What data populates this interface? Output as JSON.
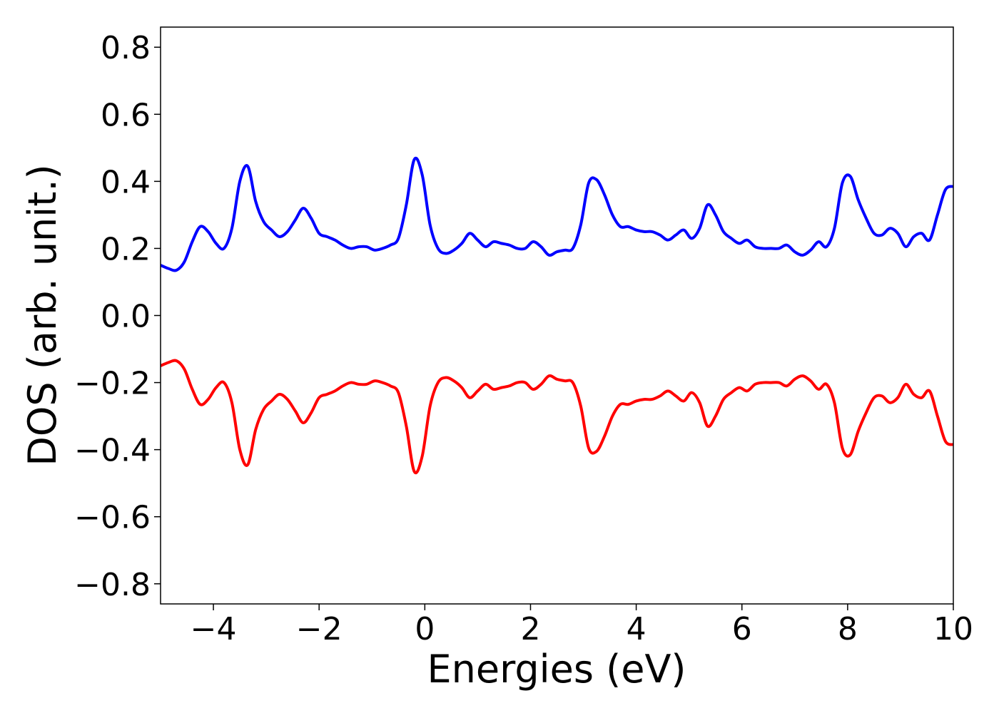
{
  "chart_data": {
    "type": "line",
    "title": "",
    "xlabel": "Energies (eV)",
    "ylabel": "DOS (arb. unit.)",
    "xlim": [
      -5,
      10
    ],
    "ylim": [
      -0.86,
      0.86
    ],
    "xticks": [
      -4,
      -2,
      0,
      2,
      4,
      6,
      8,
      10
    ],
    "xtick_labels": [
      "−4",
      "−2",
      "0",
      "2",
      "4",
      "6",
      "8",
      "10"
    ],
    "yticks": [
      0.8,
      0.6,
      0.4,
      0.2,
      0.0,
      -0.2,
      -0.4,
      -0.6,
      -0.8
    ],
    "ytick_labels": [
      "0.8",
      "0.6",
      "0.4",
      "0.2",
      "0.0",
      "−0.2",
      "−0.4",
      "−0.6",
      "−0.8"
    ],
    "grid": false,
    "legend": "none",
    "series": [
      {
        "color": "#0000ff",
        "x": [
          -5.0,
          -4.85,
          -4.7,
          -4.55,
          -4.4,
          -4.25,
          -4.1,
          -3.95,
          -3.8,
          -3.65,
          -3.5,
          -3.35,
          -3.2,
          -3.05,
          -2.9,
          -2.75,
          -2.6,
          -2.45,
          -2.3,
          -2.15,
          -2.0,
          -1.85,
          -1.7,
          -1.55,
          -1.4,
          -1.25,
          -1.1,
          -0.95,
          -0.8,
          -0.65,
          -0.5,
          -0.35,
          -0.2,
          -0.05,
          0.1,
          0.25,
          0.4,
          0.55,
          0.7,
          0.85,
          1.0,
          1.15,
          1.3,
          1.45,
          1.6,
          1.75,
          1.9,
          2.05,
          2.2,
          2.35,
          2.5,
          2.65,
          2.8,
          2.95,
          3.1,
          3.25,
          3.4,
          3.55,
          3.7,
          3.85,
          4.0,
          4.15,
          4.3,
          4.45,
          4.6,
          4.75,
          4.9,
          5.05,
          5.2,
          5.35,
          5.5,
          5.65,
          5.8,
          5.95,
          6.1,
          6.25,
          6.4,
          6.55,
          6.7,
          6.85,
          7.0,
          7.15,
          7.3,
          7.45,
          7.6,
          7.75,
          7.9,
          8.05,
          8.2,
          8.35,
          8.5,
          8.65,
          8.8,
          8.95,
          9.1,
          9.25,
          9.4,
          9.55,
          9.7,
          9.85,
          10.0
        ],
        "y": [
          0.15,
          0.14,
          0.135,
          0.16,
          0.22,
          0.265,
          0.25,
          0.215,
          0.2,
          0.26,
          0.4,
          0.445,
          0.34,
          0.28,
          0.255,
          0.235,
          0.25,
          0.285,
          0.32,
          0.29,
          0.245,
          0.235,
          0.225,
          0.21,
          0.2,
          0.205,
          0.205,
          0.195,
          0.2,
          0.21,
          0.23,
          0.33,
          0.465,
          0.42,
          0.27,
          0.2,
          0.185,
          0.195,
          0.215,
          0.245,
          0.225,
          0.205,
          0.22,
          0.215,
          0.21,
          0.2,
          0.2,
          0.22,
          0.205,
          0.18,
          0.19,
          0.195,
          0.2,
          0.27,
          0.395,
          0.405,
          0.36,
          0.3,
          0.265,
          0.265,
          0.255,
          0.25,
          0.25,
          0.24,
          0.225,
          0.24,
          0.255,
          0.23,
          0.26,
          0.33,
          0.3,
          0.25,
          0.23,
          0.215,
          0.225,
          0.205,
          0.2,
          0.2,
          0.2,
          0.21,
          0.19,
          0.18,
          0.195,
          0.22,
          0.205,
          0.26,
          0.395,
          0.415,
          0.345,
          0.29,
          0.245,
          0.24,
          0.26,
          0.245,
          0.205,
          0.235,
          0.245,
          0.225,
          0.3,
          0.375,
          0.385
        ]
      },
      {
        "color": "#ff0000",
        "x": [
          -5.0,
          -4.85,
          -4.7,
          -4.55,
          -4.4,
          -4.25,
          -4.1,
          -3.95,
          -3.8,
          -3.65,
          -3.5,
          -3.35,
          -3.2,
          -3.05,
          -2.9,
          -2.75,
          -2.6,
          -2.45,
          -2.3,
          -2.15,
          -2.0,
          -1.85,
          -1.7,
          -1.55,
          -1.4,
          -1.25,
          -1.1,
          -0.95,
          -0.8,
          -0.65,
          -0.5,
          -0.35,
          -0.2,
          -0.05,
          0.1,
          0.25,
          0.4,
          0.55,
          0.7,
          0.85,
          1.0,
          1.15,
          1.3,
          1.45,
          1.6,
          1.75,
          1.9,
          2.05,
          2.2,
          2.35,
          2.5,
          2.65,
          2.8,
          2.95,
          3.1,
          3.25,
          3.4,
          3.55,
          3.7,
          3.85,
          4.0,
          4.15,
          4.3,
          4.45,
          4.6,
          4.75,
          4.9,
          5.05,
          5.2,
          5.35,
          5.5,
          5.65,
          5.8,
          5.95,
          6.1,
          6.25,
          6.4,
          6.55,
          6.7,
          6.85,
          7.0,
          7.15,
          7.3,
          7.45,
          7.6,
          7.75,
          7.9,
          8.05,
          8.2,
          8.35,
          8.5,
          8.65,
          8.8,
          8.95,
          9.1,
          9.25,
          9.4,
          9.55,
          9.7,
          9.85,
          10.0
        ],
        "y": [
          -0.15,
          -0.14,
          -0.135,
          -0.16,
          -0.22,
          -0.265,
          -0.25,
          -0.215,
          -0.2,
          -0.26,
          -0.4,
          -0.445,
          -0.34,
          -0.28,
          -0.255,
          -0.235,
          -0.25,
          -0.285,
          -0.32,
          -0.29,
          -0.245,
          -0.235,
          -0.225,
          -0.21,
          -0.2,
          -0.205,
          -0.205,
          -0.195,
          -0.2,
          -0.21,
          -0.23,
          -0.33,
          -0.465,
          -0.42,
          -0.27,
          -0.2,
          -0.185,
          -0.195,
          -0.215,
          -0.245,
          -0.225,
          -0.205,
          -0.22,
          -0.215,
          -0.21,
          -0.2,
          -0.2,
          -0.22,
          -0.205,
          -0.18,
          -0.19,
          -0.195,
          -0.2,
          -0.27,
          -0.395,
          -0.405,
          -0.36,
          -0.3,
          -0.265,
          -0.265,
          -0.255,
          -0.25,
          -0.25,
          -0.24,
          -0.225,
          -0.24,
          -0.255,
          -0.23,
          -0.26,
          -0.33,
          -0.3,
          -0.25,
          -0.23,
          -0.215,
          -0.225,
          -0.205,
          -0.2,
          -0.2,
          -0.2,
          -0.21,
          -0.19,
          -0.18,
          -0.195,
          -0.22,
          -0.205,
          -0.26,
          -0.395,
          -0.415,
          -0.345,
          -0.29,
          -0.245,
          -0.24,
          -0.26,
          -0.245,
          -0.205,
          -0.235,
          -0.245,
          -0.225,
          -0.3,
          -0.375,
          -0.385
        ]
      }
    ]
  }
}
